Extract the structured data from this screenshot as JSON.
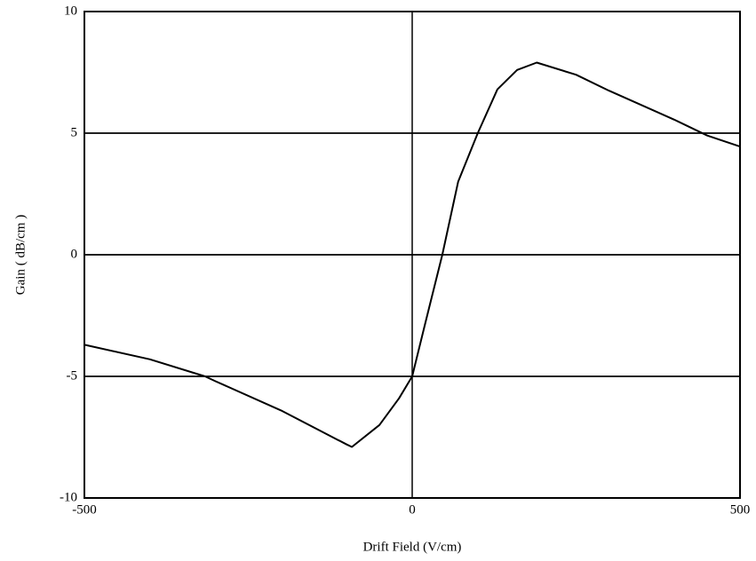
{
  "chart_data": {
    "type": "line",
    "x_label": "Drift Field (V/cm)",
    "y_label": "Gain ( dB/cm )",
    "xlim": [
      -500,
      500
    ],
    "xticks": [
      -500,
      0,
      500
    ],
    "ylim": [
      -10,
      10
    ],
    "yticks": [
      -10,
      -5,
      0,
      5,
      10
    ],
    "grid": true,
    "series": [
      {
        "color": "#000000",
        "x": [
          -500,
          -400,
          -316,
          -300,
          -200,
          -100,
          -92,
          -50,
          -20,
          0,
          20,
          46,
          70,
          100,
          130,
          160,
          190,
          250,
          300,
          400,
          450,
          500
        ],
        "values": [
          -3.7,
          -4.3,
          -5,
          -5.2,
          -6.4,
          -7.8,
          -7.9,
          -7.0,
          -5.9,
          -5,
          -2.8,
          0,
          3.0,
          5,
          6.8,
          7.6,
          7.9,
          7.4,
          6.75,
          5.55,
          4.9,
          4.45
        ]
      }
    ]
  }
}
